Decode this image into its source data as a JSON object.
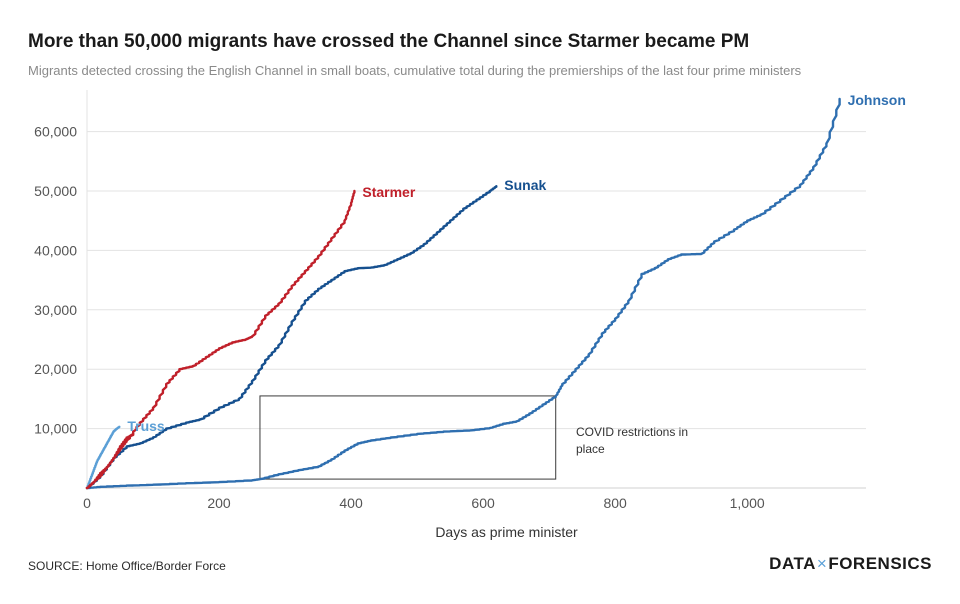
{
  "header": {
    "title": "More than 50,000 migrants have crossed the Channel since Starmer became PM",
    "subtitle": "Migrants detected crossing the English Channel in small boats, cumulative total during the premierships of the last four prime ministers"
  },
  "footer": {
    "source": "SOURCE: Home Office/Border Force",
    "brand_left": "DATA",
    "brand_sep": "×",
    "brand_right": "FORENSICS"
  },
  "chart_data": {
    "type": "line",
    "xlabel": "Days as prime minister",
    "ylabel": "",
    "xlim": [
      0,
      1180
    ],
    "ylim": [
      0,
      67000
    ],
    "x_ticks": [
      0,
      200,
      400,
      600,
      800,
      1000
    ],
    "x_tick_labels": [
      "0",
      "200",
      "400",
      "600",
      "800",
      "1,000"
    ],
    "y_ticks": [
      10000,
      20000,
      30000,
      40000,
      50000,
      60000
    ],
    "y_tick_labels": [
      "10,000",
      "20,000",
      "30,000",
      "40,000",
      "50,000",
      "60,000"
    ],
    "grid": "horizontal",
    "legend": "direct labels",
    "annotation": {
      "text_lines": [
        "COVID restrictions in",
        "place"
      ],
      "x_range": [
        262,
        710
      ],
      "y_range": [
        1500,
        15500
      ]
    },
    "series": [
      {
        "name": "Johnson",
        "color": "#2f6fb0",
        "points": [
          [
            0,
            0
          ],
          [
            20,
            200
          ],
          [
            60,
            400
          ],
          [
            100,
            550
          ],
          [
            150,
            800
          ],
          [
            200,
            1000
          ],
          [
            250,
            1300
          ],
          [
            262,
            1500
          ],
          [
            290,
            2300
          ],
          [
            320,
            3000
          ],
          [
            350,
            3600
          ],
          [
            370,
            4800
          ],
          [
            390,
            6300
          ],
          [
            410,
            7500
          ],
          [
            430,
            8000
          ],
          [
            460,
            8500
          ],
          [
            500,
            9100
          ],
          [
            540,
            9500
          ],
          [
            580,
            9700
          ],
          [
            610,
            10100
          ],
          [
            630,
            10800
          ],
          [
            650,
            11200
          ],
          [
            670,
            12500
          ],
          [
            690,
            14000
          ],
          [
            710,
            15500
          ],
          [
            720,
            17500
          ],
          [
            740,
            20000
          ],
          [
            760,
            22500
          ],
          [
            780,
            26000
          ],
          [
            800,
            28500
          ],
          [
            820,
            31500
          ],
          [
            840,
            36000
          ],
          [
            860,
            37000
          ],
          [
            880,
            38500
          ],
          [
            900,
            39300
          ],
          [
            930,
            39400
          ],
          [
            950,
            41500
          ],
          [
            980,
            43500
          ],
          [
            1000,
            45000
          ],
          [
            1020,
            46000
          ],
          [
            1050,
            48500
          ],
          [
            1080,
            51000
          ],
          [
            1100,
            54000
          ],
          [
            1120,
            58000
          ],
          [
            1140,
            65500
          ]
        ]
      },
      {
        "name": "Truss",
        "color": "#5b9fd6",
        "points": [
          [
            0,
            0
          ],
          [
            5,
            1500
          ],
          [
            10,
            3000
          ],
          [
            15,
            4500
          ],
          [
            20,
            5500
          ],
          [
            25,
            6500
          ],
          [
            30,
            7500
          ],
          [
            35,
            8500
          ],
          [
            40,
            9500
          ],
          [
            45,
            10000
          ],
          [
            49,
            10300
          ]
        ]
      },
      {
        "name": "Sunak",
        "color": "#16508f",
        "points": [
          [
            0,
            0
          ],
          [
            20,
            2000
          ],
          [
            40,
            5000
          ],
          [
            60,
            7000
          ],
          [
            80,
            7500
          ],
          [
            100,
            8500
          ],
          [
            120,
            10000
          ],
          [
            150,
            11000
          ],
          [
            170,
            11500
          ],
          [
            200,
            13500
          ],
          [
            230,
            15000
          ],
          [
            250,
            18000
          ],
          [
            270,
            21500
          ],
          [
            290,
            24000
          ],
          [
            310,
            28000
          ],
          [
            330,
            31500
          ],
          [
            350,
            33500
          ],
          [
            370,
            35000
          ],
          [
            390,
            36500
          ],
          [
            410,
            37000
          ],
          [
            430,
            37100
          ],
          [
            450,
            37500
          ],
          [
            470,
            38500
          ],
          [
            490,
            39500
          ],
          [
            510,
            41000
          ],
          [
            530,
            43000
          ],
          [
            550,
            45000
          ],
          [
            570,
            47000
          ],
          [
            590,
            48500
          ],
          [
            610,
            50000
          ],
          [
            620,
            50800
          ]
        ]
      },
      {
        "name": "Starmer",
        "color": "#c0202a",
        "points": [
          [
            0,
            0
          ],
          [
            10,
            1000
          ],
          [
            20,
            2500
          ],
          [
            30,
            3500
          ],
          [
            40,
            5000
          ],
          [
            50,
            6500
          ],
          [
            60,
            8000
          ],
          [
            80,
            11000
          ],
          [
            100,
            13500
          ],
          [
            120,
            17500
          ],
          [
            140,
            20000
          ],
          [
            160,
            20500
          ],
          [
            180,
            22000
          ],
          [
            200,
            23500
          ],
          [
            220,
            24500
          ],
          [
            240,
            25000
          ],
          [
            250,
            25500
          ],
          [
            270,
            29000
          ],
          [
            290,
            31000
          ],
          [
            310,
            34000
          ],
          [
            330,
            36500
          ],
          [
            350,
            39000
          ],
          [
            370,
            42000
          ],
          [
            390,
            45000
          ],
          [
            400,
            48000
          ],
          [
            405,
            50000
          ]
        ]
      },
      {
        "name": "",
        "color": "#c0202a",
        "points": [
          [
            0,
            0
          ],
          [
            10,
            1000
          ],
          [
            20,
            2000
          ],
          [
            30,
            3500
          ],
          [
            40,
            5000
          ],
          [
            50,
            7000
          ],
          [
            60,
            8500
          ],
          [
            70,
            9000
          ]
        ]
      }
    ]
  }
}
